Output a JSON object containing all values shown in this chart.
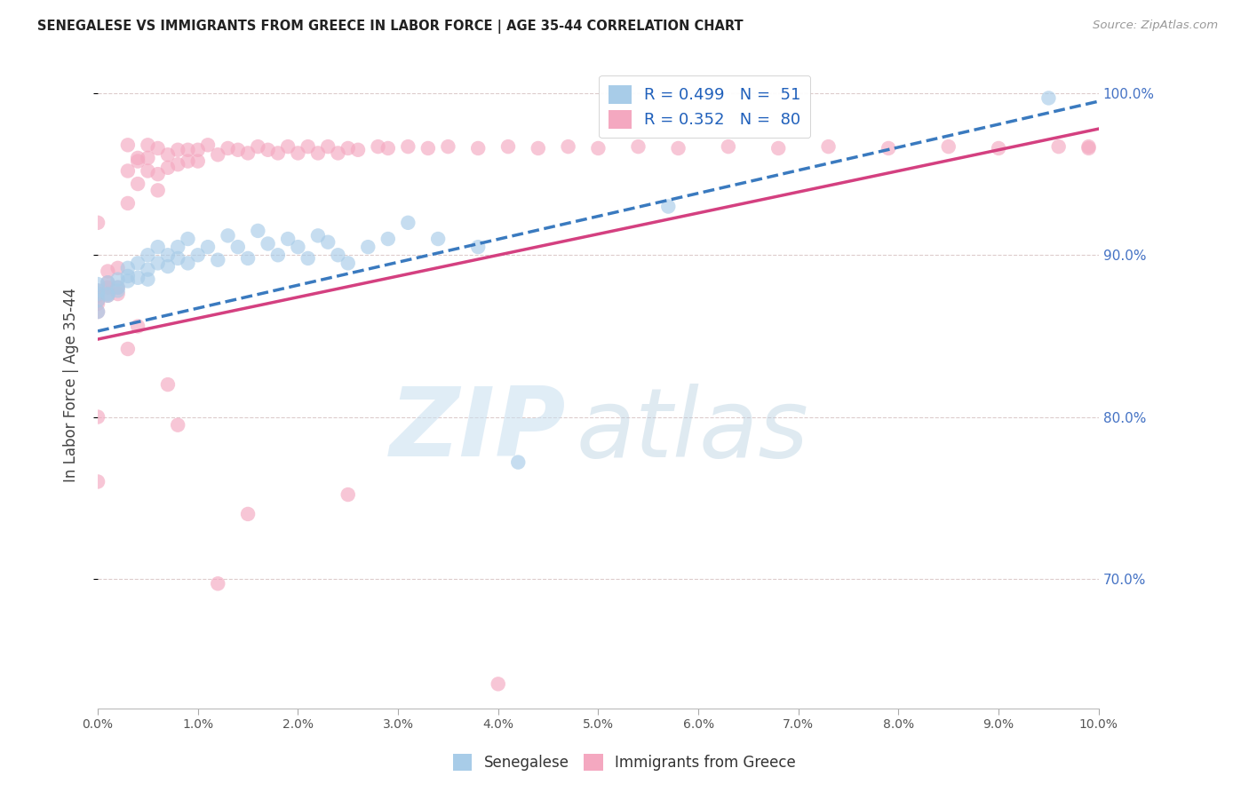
{
  "title": "SENEGALESE VS IMMIGRANTS FROM GREECE IN LABOR FORCE | AGE 35-44 CORRELATION CHART",
  "source": "Source: ZipAtlas.com",
  "ylabel": "In Labor Force | Age 35-44",
  "blue_color": "#a8cce8",
  "pink_color": "#f4a8c0",
  "blue_line_color": "#3a7abf",
  "pink_line_color": "#d44080",
  "blue_R": 0.499,
  "blue_N": 51,
  "pink_R": 0.352,
  "pink_N": 80,
  "legend_blue_text": "R = 0.499   N =  51",
  "legend_pink_text": "R = 0.352   N =  80",
  "legend_blue_label": "Senegalese",
  "legend_pink_label": "Immigrants from Greece",
  "xmin": 0.0,
  "xmax": 0.1,
  "ymin": 0.62,
  "ymax": 1.02,
  "ytick_positions": [
    0.7,
    0.8,
    0.9,
    1.0
  ],
  "ytick_labels": [
    "70.0%",
    "80.0%",
    "90.0%",
    "100.0%"
  ],
  "xtick_positions": [
    0.0,
    0.01,
    0.02,
    0.03,
    0.04,
    0.05,
    0.06,
    0.07,
    0.08,
    0.09,
    0.1
  ],
  "xtick_labels": [
    "0.0%",
    "1.0%",
    "2.0%",
    "3.0%",
    "4.0%",
    "5.0%",
    "6.0%",
    "7.0%",
    "8.0%",
    "9.0%",
    "10.0%"
  ],
  "right_tick_color": "#4472c4",
  "legend_text_color": "#2060bb",
  "blue_line_intercept": 0.853,
  "blue_line_slope": 1.42,
  "pink_line_intercept": 0.848,
  "pink_line_slope": 1.3,
  "blue_points_x": [
    0.0,
    0.0,
    0.0,
    0.0,
    0.0,
    0.001,
    0.001,
    0.001,
    0.002,
    0.002,
    0.002,
    0.003,
    0.003,
    0.003,
    0.004,
    0.004,
    0.005,
    0.005,
    0.005,
    0.006,
    0.006,
    0.007,
    0.007,
    0.008,
    0.008,
    0.009,
    0.009,
    0.01,
    0.011,
    0.012,
    0.013,
    0.014,
    0.015,
    0.016,
    0.017,
    0.018,
    0.019,
    0.02,
    0.021,
    0.022,
    0.023,
    0.024,
    0.025,
    0.027,
    0.029,
    0.031,
    0.034,
    0.038,
    0.042,
    0.057,
    0.095
  ],
  "blue_points_y": [
    0.865,
    0.872,
    0.878,
    0.882,
    0.876,
    0.876,
    0.883,
    0.875,
    0.878,
    0.885,
    0.88,
    0.884,
    0.892,
    0.887,
    0.886,
    0.895,
    0.891,
    0.9,
    0.885,
    0.895,
    0.905,
    0.893,
    0.9,
    0.898,
    0.905,
    0.895,
    0.91,
    0.9,
    0.905,
    0.897,
    0.912,
    0.905,
    0.898,
    0.915,
    0.907,
    0.9,
    0.91,
    0.905,
    0.898,
    0.912,
    0.908,
    0.9,
    0.895,
    0.905,
    0.91,
    0.92,
    0.91,
    0.905,
    0.772,
    0.93,
    0.997
  ],
  "pink_points_x": [
    0.0,
    0.0,
    0.0,
    0.0,
    0.0,
    0.001,
    0.001,
    0.001,
    0.001,
    0.002,
    0.002,
    0.002,
    0.003,
    0.003,
    0.003,
    0.004,
    0.004,
    0.004,
    0.005,
    0.005,
    0.005,
    0.006,
    0.006,
    0.006,
    0.007,
    0.007,
    0.008,
    0.008,
    0.009,
    0.009,
    0.01,
    0.01,
    0.011,
    0.012,
    0.013,
    0.014,
    0.015,
    0.016,
    0.017,
    0.018,
    0.019,
    0.02,
    0.021,
    0.022,
    0.023,
    0.024,
    0.025,
    0.026,
    0.028,
    0.029,
    0.031,
    0.033,
    0.035,
    0.038,
    0.041,
    0.044,
    0.047,
    0.05,
    0.054,
    0.058,
    0.063,
    0.068,
    0.073,
    0.079,
    0.085,
    0.09,
    0.096,
    0.099,
    0.099,
    0.0,
    0.0,
    0.0,
    0.003,
    0.004,
    0.007,
    0.008,
    0.012,
    0.015,
    0.025,
    0.04
  ],
  "pink_points_y": [
    0.875,
    0.87,
    0.865,
    0.878,
    0.872,
    0.88,
    0.89,
    0.883,
    0.875,
    0.892,
    0.88,
    0.876,
    0.968,
    0.952,
    0.932,
    0.958,
    0.944,
    0.96,
    0.968,
    0.952,
    0.96,
    0.966,
    0.95,
    0.94,
    0.962,
    0.954,
    0.965,
    0.956,
    0.965,
    0.958,
    0.965,
    0.958,
    0.968,
    0.962,
    0.966,
    0.965,
    0.963,
    0.967,
    0.965,
    0.963,
    0.967,
    0.963,
    0.967,
    0.963,
    0.967,
    0.963,
    0.966,
    0.965,
    0.967,
    0.966,
    0.967,
    0.966,
    0.967,
    0.966,
    0.967,
    0.966,
    0.967,
    0.966,
    0.967,
    0.966,
    0.967,
    0.966,
    0.967,
    0.966,
    0.967,
    0.966,
    0.967,
    0.966,
    0.967,
    0.92,
    0.8,
    0.76,
    0.842,
    0.856,
    0.82,
    0.795,
    0.697,
    0.74,
    0.752,
    0.635
  ]
}
